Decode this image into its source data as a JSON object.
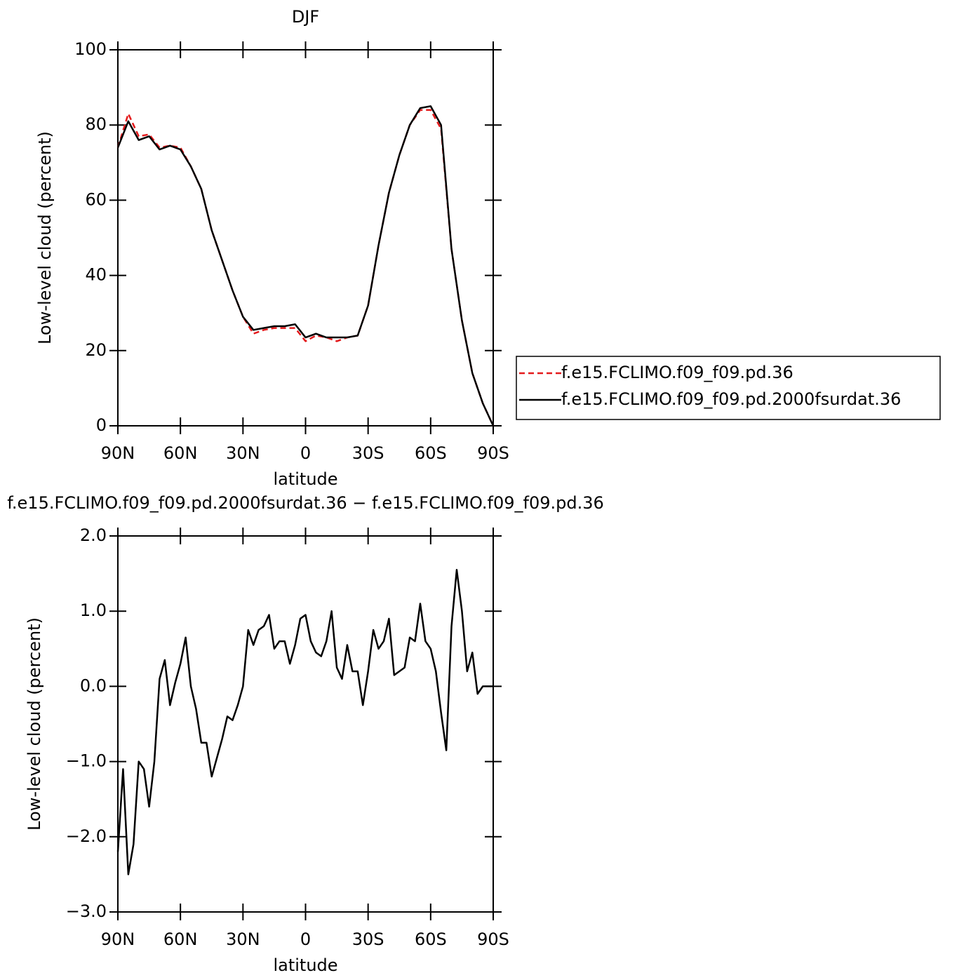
{
  "chart_data": [
    {
      "type": "line",
      "title": "DJF",
      "xlabel": "latitude",
      "ylabel": "Low-level cloud (percent)",
      "x": [
        90,
        85,
        80,
        75,
        70,
        65,
        60,
        55,
        50,
        45,
        40,
        35,
        30,
        25,
        20,
        15,
        10,
        5,
        0,
        -5,
        -10,
        -15,
        -20,
        -25,
        -30,
        -35,
        -40,
        -45,
        -50,
        -55,
        -60,
        -65,
        -70,
        -75,
        -80,
        -85,
        -90
      ],
      "series": [
        {
          "name": "f.e15.FCLIMO.f09_f09.pd.36",
          "color": "#e41a1c",
          "linestyle": "dashed",
          "values": [
            74,
            83,
            77,
            77.5,
            74,
            74.5,
            74,
            69,
            63,
            52,
            44,
            36,
            29,
            24.5,
            25.5,
            26,
            26,
            26,
            22.5,
            24,
            23.5,
            22.5,
            23.5,
            24,
            32,
            48,
            62,
            72,
            80,
            84,
            84,
            79,
            47,
            28,
            14,
            6,
            0
          ]
        },
        {
          "name": "f.e15.FCLIMO.f09_f09.pd.2000fsurdat.36",
          "color": "#000000",
          "linestyle": "solid",
          "values": [
            74,
            81,
            76,
            77,
            73.5,
            74.5,
            73.5,
            69,
            63,
            52,
            44,
            36,
            29,
            25.5,
            26,
            26.5,
            26.5,
            27,
            23.5,
            24.5,
            23.5,
            23.5,
            23.5,
            24,
            32,
            48,
            62,
            72,
            80,
            84.5,
            85,
            80,
            47,
            28,
            14,
            6,
            0
          ]
        }
      ],
      "xlim": [
        90,
        -90
      ],
      "xticks": [
        {
          "value": 90,
          "label": "90N"
        },
        {
          "value": 60,
          "label": "60N"
        },
        {
          "value": 30,
          "label": "30N"
        },
        0,
        {
          "value": -30,
          "label": "30S"
        },
        {
          "value": -60,
          "label": "60S"
        },
        {
          "value": -90,
          "label": "90S"
        }
      ],
      "ylim": [
        0,
        100
      ],
      "yticks": [
        0,
        20,
        40,
        60,
        80,
        100
      ],
      "legend": "right"
    },
    {
      "type": "line",
      "title": "f.e15.FCLIMO.f09_f09.pd.2000fsurdat.36 − f.e15.FCLIMO.f09_f09.pd.36",
      "xlabel": "latitude",
      "ylabel": "Low-level cloud (percent)",
      "x": [
        90,
        87.5,
        85,
        82.5,
        80,
        77.5,
        75,
        72.5,
        70,
        67.5,
        65,
        62.5,
        60,
        57.5,
        55,
        52.5,
        50,
        47.5,
        45,
        42.5,
        40,
        37.5,
        35,
        32.5,
        30,
        27.5,
        25,
        22.5,
        20,
        17.5,
        15,
        12.5,
        10,
        7.5,
        5,
        2.5,
        0,
        -2.5,
        -5,
        -7.5,
        -10,
        -12.5,
        -15,
        -17.5,
        -20,
        -22.5,
        -25,
        -27.5,
        -30,
        -32.5,
        -35,
        -37.5,
        -40,
        -42.5,
        -45,
        -47.5,
        -50,
        -52.5,
        -55,
        -57.5,
        -60,
        -62.5,
        -65,
        -67.5,
        -70,
        -72.5,
        -75,
        -77.5,
        -80,
        -82.5,
        -85,
        -87.5,
        -90
      ],
      "series": [
        {
          "color": "#000000",
          "linestyle": "solid",
          "values": [
            -2.2,
            -1.1,
            -2.5,
            -2.1,
            -1.0,
            -1.1,
            -1.6,
            -1.0,
            0.1,
            0.35,
            -0.25,
            0.05,
            0.3,
            0.65,
            0.0,
            -0.3,
            -0.75,
            -0.75,
            -1.2,
            -0.95,
            -0.7,
            -0.4,
            -0.45,
            -0.25,
            0.0,
            0.75,
            0.55,
            0.75,
            0.8,
            0.95,
            0.5,
            0.6,
            0.6,
            0.3,
            0.55,
            0.9,
            0.95,
            0.6,
            0.45,
            0.4,
            0.6,
            1.0,
            0.25,
            0.1,
            0.55,
            0.2,
            0.2,
            -0.25,
            0.2,
            0.75,
            0.5,
            0.6,
            0.9,
            0.15,
            0.2,
            0.25,
            0.65,
            0.6,
            1.1,
            0.6,
            0.5,
            0.2,
            -0.35,
            -0.85,
            0.8,
            1.55,
            1.0,
            0.2,
            0.45,
            -0.1,
            0.0,
            0.0,
            0.0
          ]
        }
      ],
      "xlim": [
        90,
        -90
      ],
      "xticks": [
        {
          "value": 90,
          "label": "90N"
        },
        {
          "value": 60,
          "label": "60N"
        },
        {
          "value": 30,
          "label": "30N"
        },
        0,
        {
          "value": -30,
          "label": "30S"
        },
        {
          "value": -60,
          "label": "60S"
        },
        {
          "value": -90,
          "label": "90S"
        }
      ],
      "ylim": [
        -3,
        2
      ],
      "yticks": [
        {
          "value": -3,
          "label": "−3.0"
        },
        {
          "value": -2,
          "label": "−2.0"
        },
        {
          "value": -1,
          "label": "−1.0"
        },
        {
          "value": 0,
          "label": "0.0"
        },
        {
          "value": 1,
          "label": "1.0"
        },
        {
          "value": 2,
          "label": "2.0"
        }
      ]
    }
  ]
}
